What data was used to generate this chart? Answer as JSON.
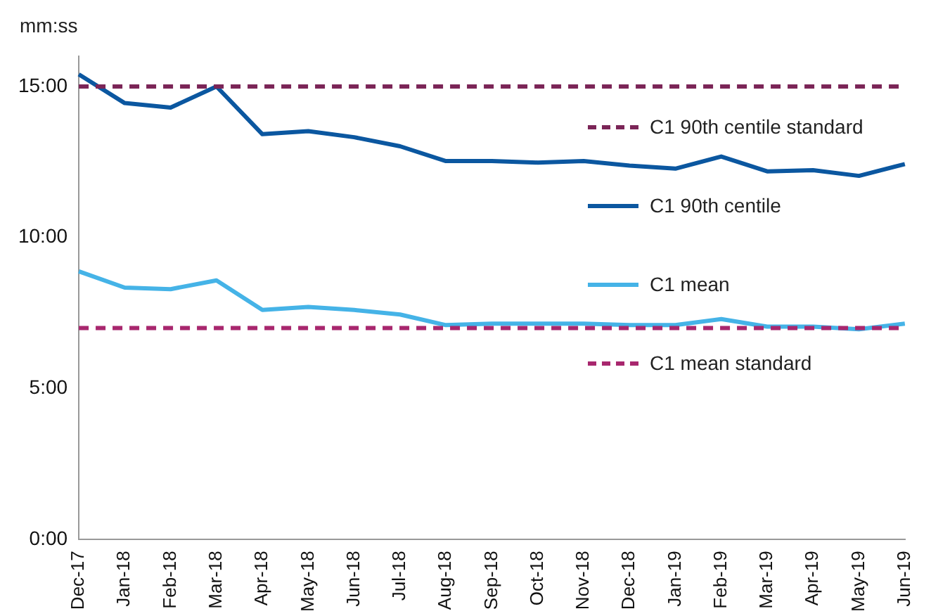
{
  "chart_data": {
    "type": "line",
    "ylabel": "mm:ss",
    "categories": [
      "Dec-17",
      "Jan-18",
      "Feb-18",
      "Mar-18",
      "Apr-18",
      "May-18",
      "Jun-18",
      "Jul-18",
      "Aug-18",
      "Sep-18",
      "Oct-18",
      "Nov-18",
      "Dec-18",
      "Jan-19",
      "Feb-19",
      "Mar-19",
      "Apr-19",
      "May-19",
      "Jun-19"
    ],
    "series": [
      {
        "name": "C1 90th centile",
        "color": "#0b57a0",
        "values": [
          15.4,
          14.45,
          14.3,
          15.0,
          13.42,
          13.52,
          13.32,
          13.02,
          12.53,
          12.53,
          12.48,
          12.53,
          12.38,
          12.28,
          12.68,
          12.19,
          12.23,
          12.04,
          12.43
        ]
      },
      {
        "name": "C1 mean",
        "color": "#45b3e7",
        "values": [
          8.88,
          8.34,
          8.29,
          8.58,
          7.6,
          7.7,
          7.6,
          7.45,
          7.1,
          7.15,
          7.15,
          7.15,
          7.1,
          7.1,
          7.3,
          7.05,
          7.05,
          6.96,
          7.15
        ]
      }
    ],
    "ref_lines": [
      {
        "axis": "y",
        "value": 15,
        "label": "C1 90th centile standard",
        "color": "#7b2557",
        "line_style": "dashed"
      },
      {
        "axis": "y",
        "value": 7,
        "label": "C1 mean standard",
        "color": "#a8276e",
        "line_style": "dashed"
      }
    ],
    "ylim": [
      0,
      16
    ],
    "yticks": [
      {
        "value": 0,
        "label": "0:00"
      },
      {
        "value": 5,
        "label": "5:00"
      },
      {
        "value": 10,
        "label": "10:00"
      },
      {
        "value": 15,
        "label": "15:00"
      }
    ],
    "grid": false,
    "legend": "right",
    "marker": "none",
    "line_style": "solid"
  }
}
